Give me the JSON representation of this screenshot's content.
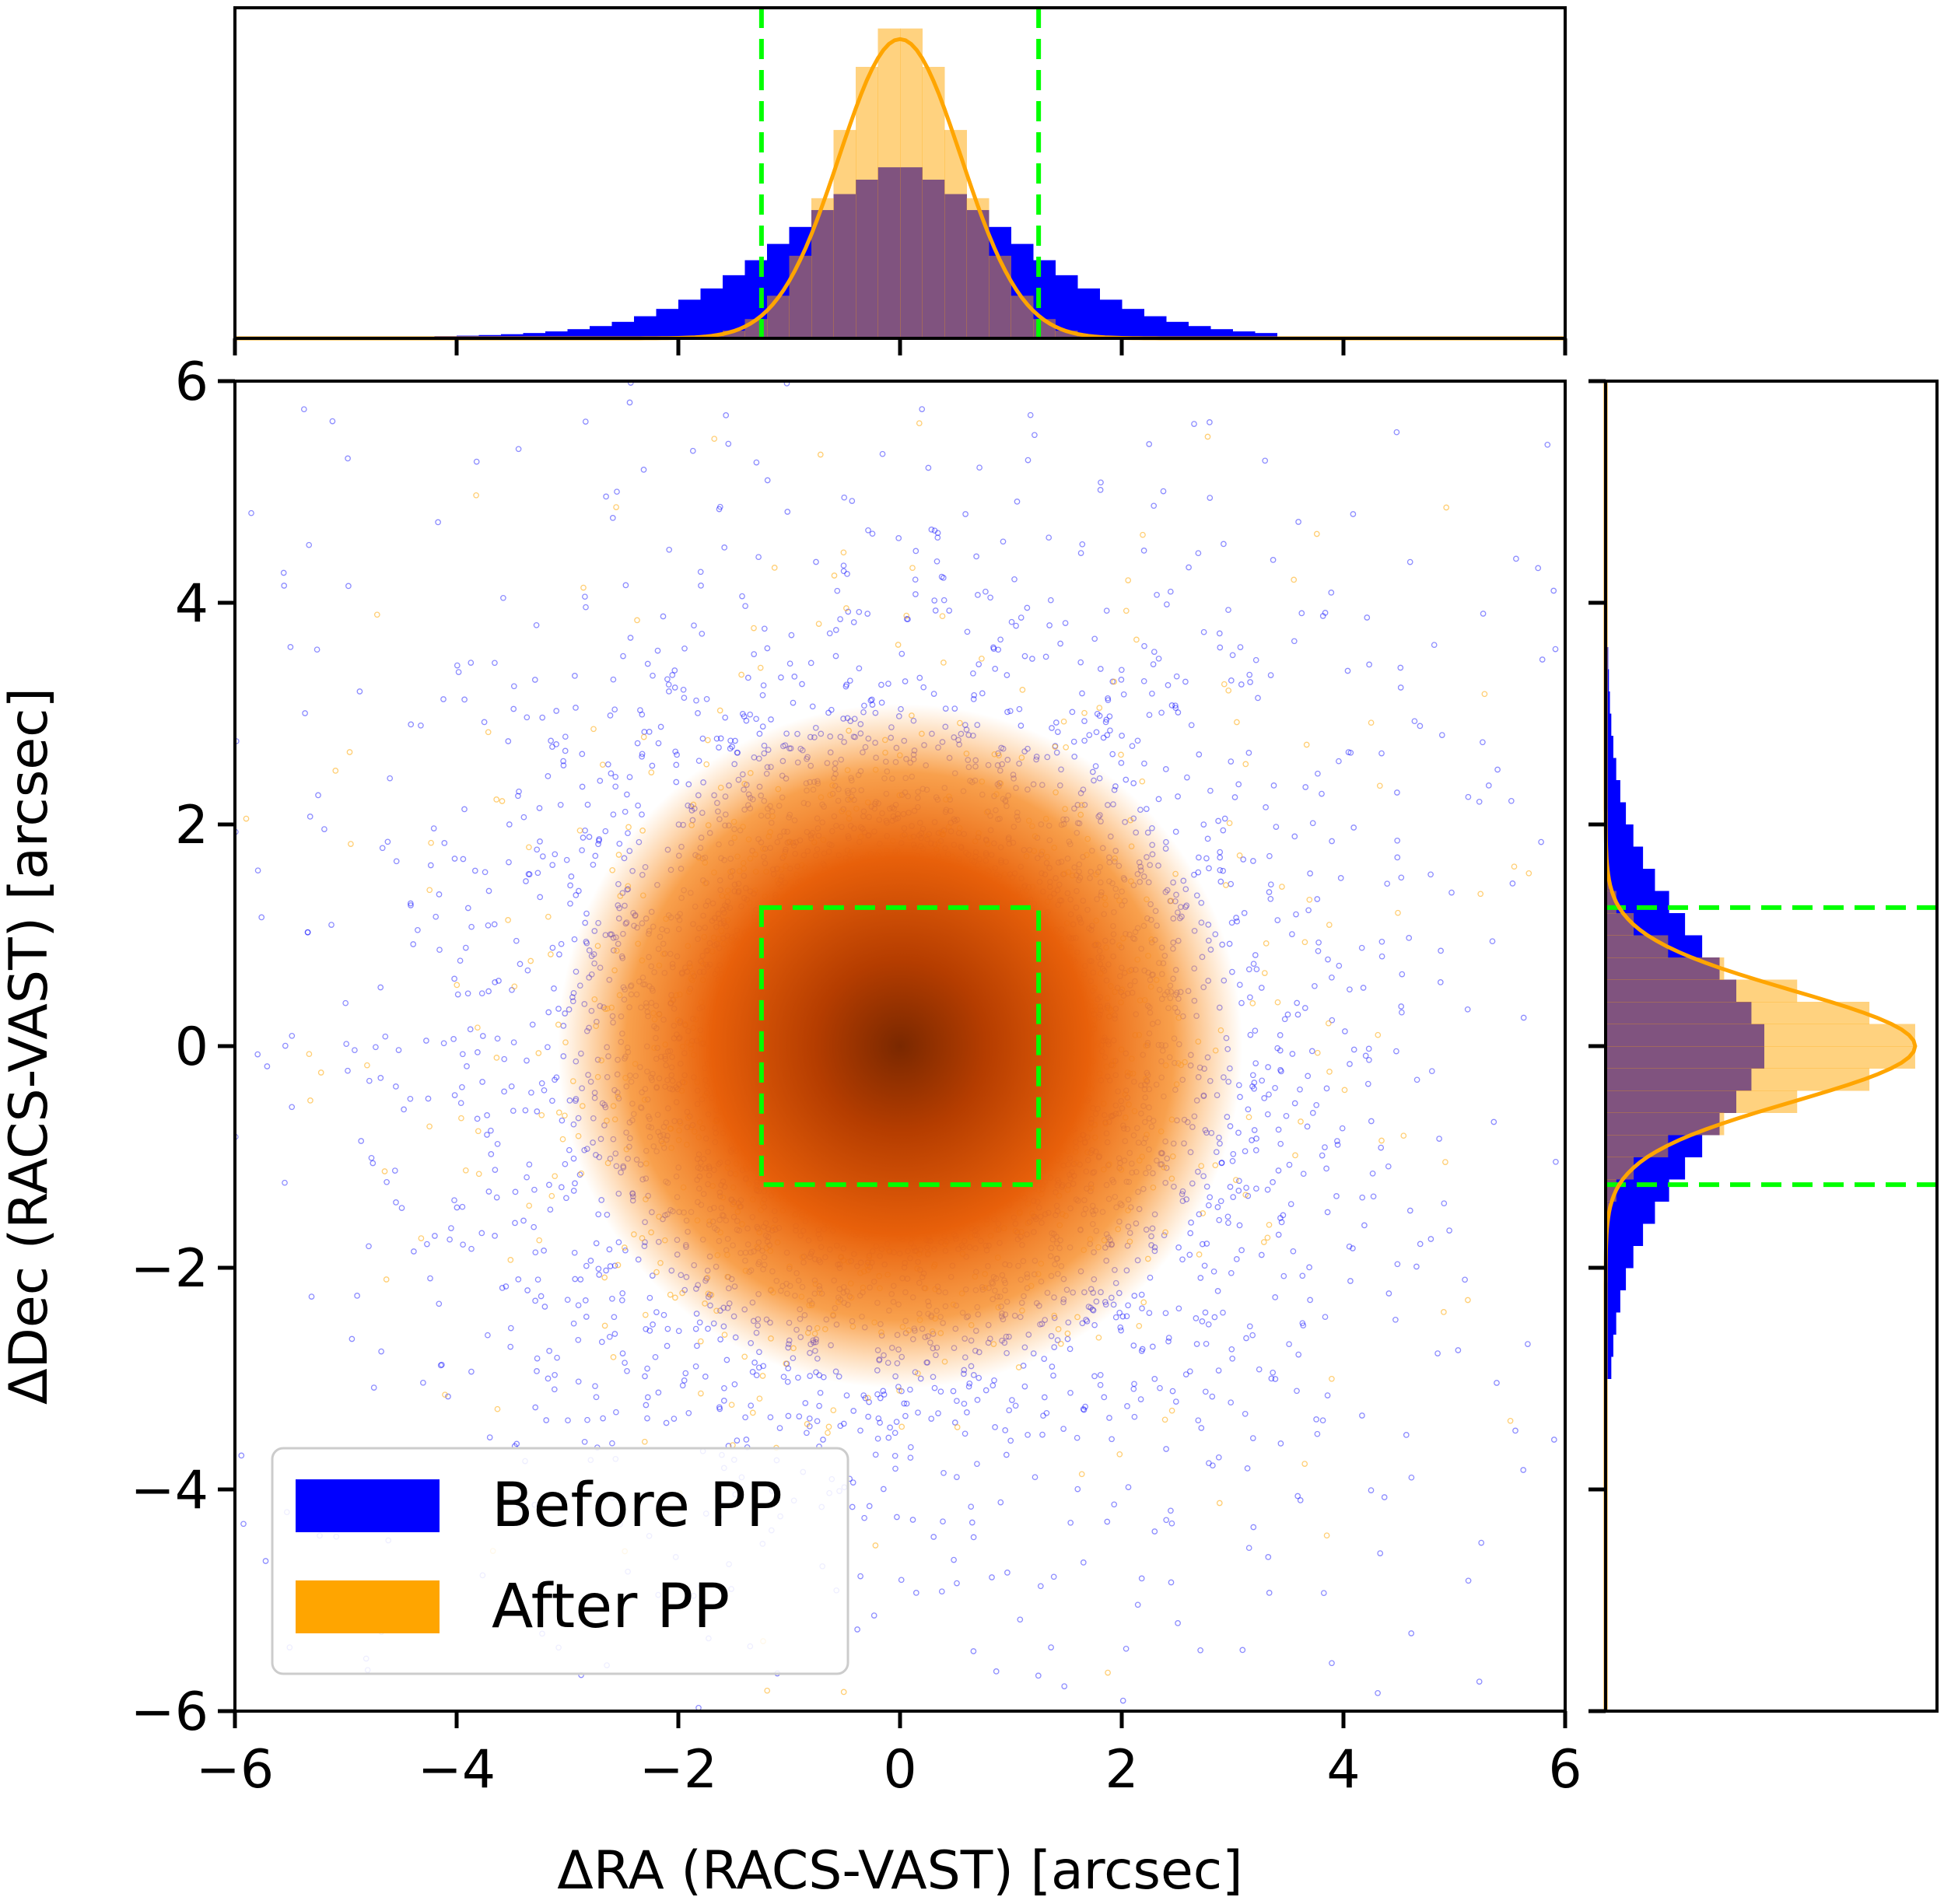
{
  "chart_data": [
    {
      "type": "scatter",
      "panel": "main",
      "xlabel": "ΔRA (RACS-VAST) [arcsec]",
      "ylabel": "ΔDec (RACS-VAST) [arcsec]",
      "xlim": [
        -6,
        6
      ],
      "ylim": [
        -6,
        6
      ],
      "xticks": [
        -6,
        -4,
        -2,
        0,
        2,
        4,
        6
      ],
      "yticks": [
        -6,
        -4,
        -2,
        0,
        2,
        4,
        6
      ],
      "xtick_labels": [
        "−6",
        "−4",
        "−2",
        "0",
        "2",
        "4",
        "6"
      ],
      "ytick_labels": [
        "−6",
        "−4",
        "−2",
        "0",
        "2",
        "4",
        "6"
      ],
      "grid": false,
      "legend_position": "lower-left",
      "series": [
        {
          "name": "Before PP",
          "color": "#0000ff",
          "marker": "hollow-circle",
          "center": [
            0,
            0
          ],
          "spread_sigma": [
            1.6,
            1.6
          ],
          "extent": [
            -6,
            6
          ]
        },
        {
          "name": "After PP",
          "color": "#ffa500",
          "marker": "hollow-circle",
          "center": [
            0,
            0
          ],
          "spread_sigma": [
            0.55,
            0.55
          ],
          "extent": [
            -6,
            6
          ],
          "core_density": "dark-red-center"
        }
      ],
      "cut_box": {
        "x": [
          -1.25,
          1.25
        ],
        "y": [
          -1.25,
          1.25
        ],
        "color": "#00ff00",
        "style": "dashed"
      }
    },
    {
      "type": "bar",
      "panel": "top-histogram",
      "axis": "ΔRA",
      "xlim": [
        -6,
        6
      ],
      "bin_width": 0.2,
      "series": [
        {
          "name": "Before PP",
          "color": "#0000ff",
          "center": 0,
          "sigma": 1.1,
          "peak": 0.56,
          "tail_cutoff": [
            -4.2,
            3.5
          ]
        },
        {
          "name": "After PP",
          "color": "#ffa500",
          "opacity": 0.5,
          "center": 0,
          "sigma": 0.55,
          "peak": 1.0,
          "tail_cutoff": [
            -4.2,
            3.5
          ]
        }
      ],
      "fit_curve": {
        "color": "#ffa500",
        "center": 0,
        "sigma": 0.55,
        "peak": 0.95
      },
      "cut_lines": [
        -1.25,
        1.25
      ],
      "cut_color": "#00ff00"
    },
    {
      "type": "bar",
      "panel": "right-histogram",
      "axis": "ΔDec",
      "ylim": [
        -6,
        6
      ],
      "bin_width": 0.2,
      "series": [
        {
          "name": "Before PP",
          "color": "#0000ff",
          "center": 0,
          "sigma": 1.0,
          "peak": 0.52,
          "tail_cutoff": [
            -3.0,
            3.6
          ]
        },
        {
          "name": "After PP",
          "color": "#ffa500",
          "opacity": 0.5,
          "center": 0,
          "sigma": 0.5,
          "peak": 1.0,
          "tail_cutoff": [
            -3.0,
            3.6
          ]
        }
      ],
      "fit_curve": {
        "color": "#ffa500",
        "center": 0,
        "sigma": 0.5,
        "peak": 0.98
      },
      "cut_lines": [
        -1.25,
        1.25
      ],
      "cut_color": "#00ff00"
    }
  ],
  "legend": [
    {
      "label": "Before PP",
      "color": "#0000ff"
    },
    {
      "label": "After PP",
      "color": "#ffa500"
    }
  ]
}
